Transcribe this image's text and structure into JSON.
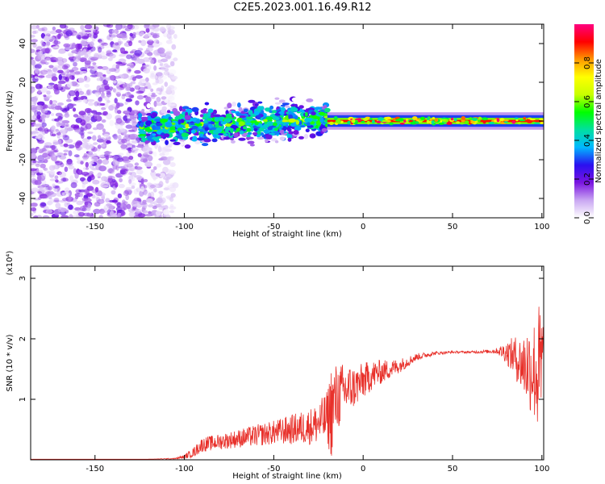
{
  "title": "C2E5.2023.001.16.49.R12",
  "chart_data": [
    {
      "type": "heatmap",
      "title": "",
      "xlabel": "Height of straight line (km)",
      "ylabel": "Frequency (Hz)",
      "xlim": [
        -186,
        101
      ],
      "ylim": [
        -50,
        50
      ],
      "xticks": [
        -150,
        -100,
        -50,
        0,
        50,
        100
      ],
      "yticks": [
        -40,
        -20,
        0,
        20,
        40
      ],
      "colorbar": {
        "label": "Normalized spectral amplitude",
        "range": [
          0,
          1
        ],
        "ticks": [
          "0.0",
          "0.2",
          "0.4",
          "0.6",
          "0.8"
        ],
        "colors": [
          "#ffffff",
          "#c9a6f2",
          "#7a14e0",
          "#2a10f0",
          "#00b8ff",
          "#00e0a0",
          "#00ff00",
          "#c8ff00",
          "#ffff00",
          "#ff9900",
          "#ff0000",
          "#ff0080"
        ]
      },
      "regions": [
        {
          "name": "noise",
          "x_range": [
            -186,
            -105
          ],
          "freq_range": [
            -50,
            50
          ],
          "amplitude": 0.12
        },
        {
          "name": "onset",
          "x_range": [
            -125,
            -20
          ],
          "freq_center": -4,
          "freq_halfwidth": 10,
          "amplitude": 0.35
        },
        {
          "name": "tone",
          "x_range": [
            -20,
            101
          ],
          "freq_center": 0,
          "freq_halfwidth": 3,
          "amplitude": 0.9
        }
      ]
    },
    {
      "type": "line",
      "title": "",
      "xlabel": "Height of straight line (km)",
      "ylabel": "SNR (10 * v/v)",
      "y_scale_label": "(x10⁴)",
      "xlim": [
        -186,
        101
      ],
      "ylim": [
        0,
        3.2
      ],
      "xticks": [
        -150,
        -100,
        -50,
        0,
        50,
        100
      ],
      "yticks": [
        1,
        2,
        3
      ],
      "color": "#e8302a",
      "series": [
        {
          "x": [
            -186,
            -150,
            -120,
            -105,
            -100,
            -95,
            -90,
            -80,
            -70,
            -60,
            -50,
            -40,
            -30,
            -25,
            -20,
            -18,
            -15,
            -12,
            -10,
            -5,
            0,
            5,
            10,
            20,
            30,
            40,
            50,
            60,
            70,
            75,
            80,
            85,
            88,
            92,
            95,
            97,
            99,
            101
          ],
          "y": [
            0.01,
            0.01,
            0.01,
            0.02,
            0.05,
            0.12,
            0.25,
            0.3,
            0.35,
            0.4,
            0.45,
            0.5,
            0.55,
            0.6,
            0.7,
            0.8,
            1.0,
            1.1,
            1.15,
            1.2,
            1.3,
            1.4,
            1.45,
            1.55,
            1.7,
            1.76,
            1.78,
            1.78,
            1.79,
            1.8,
            1.78,
            1.7,
            1.6,
            1.55,
            1.5,
            1.45,
            1.4,
            1.6
          ],
          "spread": [
            0,
            0,
            0,
            0.01,
            0.03,
            0.08,
            0.12,
            0.13,
            0.15,
            0.18,
            0.2,
            0.25,
            0.3,
            0.35,
            0.45,
            0.8,
            0.6,
            0.5,
            0.45,
            0.35,
            0.3,
            0.25,
            0.2,
            0.12,
            0.06,
            0.03,
            0.02,
            0.02,
            0.03,
            0.05,
            0.18,
            0.35,
            0.45,
            0.7,
            0.8,
            1.0,
            1.3,
            0.8
          ]
        }
      ]
    }
  ]
}
